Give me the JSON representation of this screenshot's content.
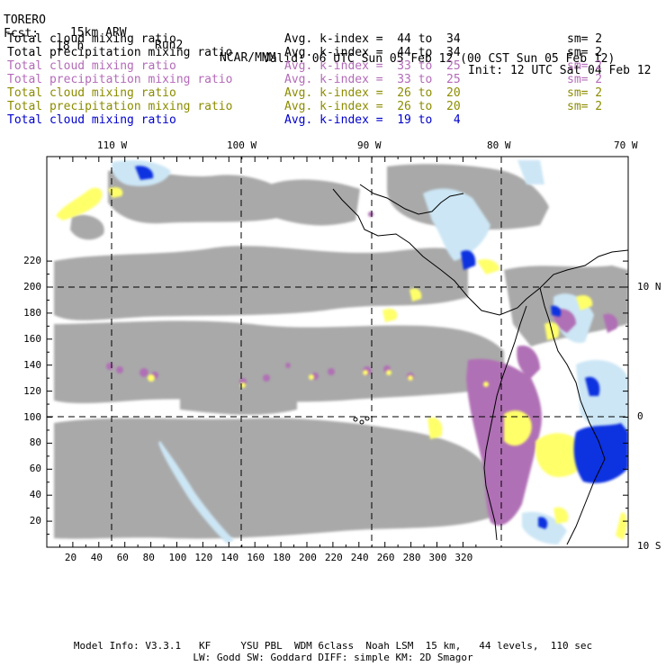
{
  "header": {
    "model": "TORERO",
    "resolution": "15km ARW",
    "run": "Run2",
    "org": "NCAR/MMM",
    "init": "Init: 12 UTC Sat 04 Feb 12",
    "fcst_label": "Fcst:",
    "fcst_value": "18 h",
    "valid": "Valid: 06 UTC Sun 05 Feb 12 (00 CST Sun 05 Feb 12)"
  },
  "legend": [
    {
      "label": "Total cloud mixing ratio",
      "index": "Avg. k-index =  44 to  34",
      "sm": "sm= 2",
      "color": "#000000"
    },
    {
      "label": "Total precipitation mixing ratio",
      "index": "Avg. k-index =  44 to  34",
      "sm": "sm= 2",
      "color": "#000000"
    },
    {
      "label": "Total cloud mixing ratio",
      "index": "Avg. k-index =  33 to  25",
      "sm": "sm= 2",
      "color": "#b36bb8"
    },
    {
      "label": "Total precipitation mixing ratio",
      "index": "Avg. k-index =  33 to  25",
      "sm": "sm= 2",
      "color": "#b36bb8"
    },
    {
      "label": "Total cloud mixing ratio",
      "index": "Avg. k-index =  26 to  20",
      "sm": "sm= 2",
      "color": "#8c8c00"
    },
    {
      "label": "Total precipitation mixing ratio",
      "index": "Avg. k-index =  26 to  20",
      "sm": "sm= 2",
      "color": "#8c8c00"
    },
    {
      "label": "Total cloud mixing ratio",
      "index": "Avg. k-index =  19 to   4",
      "sm": "",
      "color": "#0000cc"
    }
  ],
  "map": {
    "top_lon_labels": [
      "110 W",
      "100 W",
      "90 W",
      "80 W",
      "70 W"
    ],
    "right_lat_labels": [
      "10 N",
      "0",
      "10 S"
    ],
    "bottom_grid_labels": [
      "20",
      "40",
      "60",
      "80",
      "100",
      "120",
      "140",
      "160",
      "180",
      "200",
      "220",
      "240",
      "260",
      "280",
      "300",
      "320"
    ],
    "left_grid_labels": [
      "20",
      "40",
      "60",
      "80",
      "100",
      "120",
      "140",
      "160",
      "180",
      "200",
      "220"
    ],
    "colors": {
      "cloud_gray": "#a9a9a9",
      "purple": "#b070b5",
      "yellow": "#ffff6a",
      "light_blue": "#cce6f5",
      "blue": "#1030e0"
    }
  },
  "footer": {
    "line1": "Model Info: V3.3.1   KF     YSU PBL  WDM 6class  Noah LSM  15 km,   44 levels,  110 sec",
    "line2": "LW: Godd SW: Goddard DIFF: simple KM: 2D Smagor"
  }
}
